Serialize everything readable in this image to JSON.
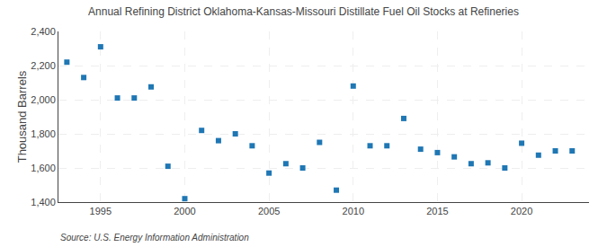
{
  "chart_data": {
    "type": "scatter",
    "title": "Annual Refining District Oklahoma-Kansas-Missouri Distillate Fuel Oil Stocks at Refineries",
    "ylabel": "Thousand Barrels",
    "source": "Source: U.S. Energy Information Administration",
    "marker": "square",
    "grid": true,
    "x": [
      1993,
      1994,
      1995,
      1996,
      1997,
      1998,
      1999,
      2000,
      2001,
      2002,
      2003,
      2004,
      2005,
      2006,
      2007,
      2008,
      2009,
      2010,
      2011,
      2012,
      2013,
      2014,
      2015,
      2016,
      2017,
      2018,
      2019,
      2020,
      2021,
      2022,
      2023
    ],
    "values": [
      2220,
      2130,
      2310,
      2010,
      2010,
      2075,
      1610,
      1420,
      1820,
      1760,
      1800,
      1730,
      1570,
      1625,
      1600,
      1750,
      1470,
      2080,
      1730,
      1730,
      1890,
      1710,
      1690,
      1665,
      1625,
      1630,
      1600,
      1745,
      1675,
      1700,
      1700
    ],
    "xlim": [
      1992.5,
      2024
    ],
    "xticks": [
      1995,
      2000,
      2005,
      2010,
      2015,
      2020
    ],
    "ylim": [
      1400,
      2400
    ],
    "yticks": [
      {
        "value": 1400,
        "label": "1,400"
      },
      {
        "value": 1600,
        "label": "1,600"
      },
      {
        "value": 1800,
        "label": "1,800"
      },
      {
        "value": 2000,
        "label": "2,000"
      },
      {
        "value": 2200,
        "label": "2,200"
      },
      {
        "value": 2400,
        "label": "2,400"
      }
    ]
  }
}
